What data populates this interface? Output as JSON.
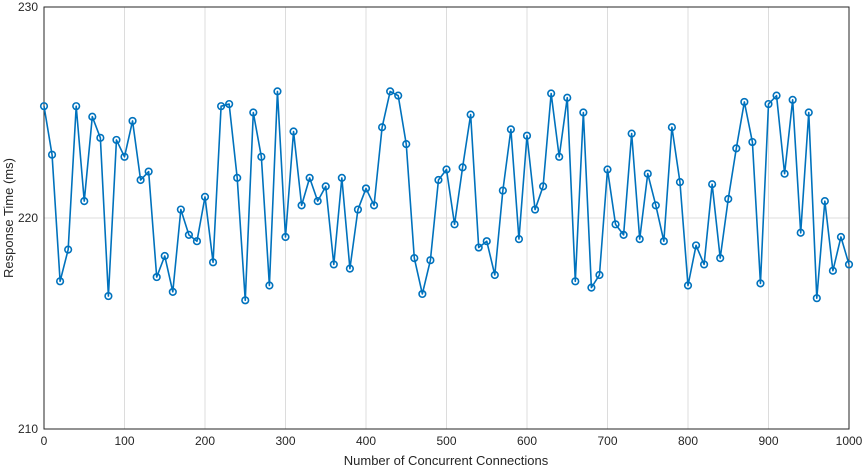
{
  "chart_data": {
    "type": "line",
    "xlabel": "Number of Concurrent Connections",
    "ylabel": "Response Time (ms)",
    "xlim": [
      0,
      1000
    ],
    "ylim": [
      210,
      230
    ],
    "xticks": [
      0,
      100,
      200,
      300,
      400,
      500,
      600,
      700,
      800,
      900,
      1000
    ],
    "yticks": [
      210,
      220,
      230
    ],
    "grid": true,
    "marker": "circle",
    "color": "#0072BD",
    "series": [
      {
        "x": [
          0,
          10,
          20,
          30,
          40,
          50,
          60,
          70,
          80,
          90,
          100,
          110,
          120,
          130,
          140,
          150,
          160,
          170,
          180,
          190,
          200,
          210,
          220,
          230,
          240,
          250,
          260,
          270,
          280,
          290,
          300,
          310,
          320,
          330,
          340,
          350,
          360,
          370,
          380,
          390,
          400,
          410,
          420,
          430,
          440,
          450,
          460,
          470,
          480,
          490,
          500,
          510,
          520,
          530,
          540,
          550,
          560,
          570,
          580,
          590,
          600,
          610,
          620,
          630,
          640,
          650,
          660,
          670,
          680,
          690,
          700,
          710,
          720,
          730,
          740,
          750,
          760,
          770,
          780,
          790,
          800,
          810,
          820,
          830,
          840,
          850,
          860,
          870,
          880,
          890,
          900,
          910,
          920,
          930,
          940,
          950,
          960,
          970,
          980,
          990,
          1000
        ],
        "values": [
          225.3,
          223.0,
          217.0,
          218.5,
          225.3,
          220.8,
          224.8,
          223.8,
          216.3,
          223.7,
          222.9,
          224.6,
          221.8,
          222.2,
          217.2,
          218.2,
          216.5,
          220.4,
          219.2,
          218.9,
          221.0,
          217.9,
          225.3,
          225.4,
          221.9,
          216.1,
          225.0,
          222.9,
          216.8,
          226.0,
          219.1,
          224.1,
          220.6,
          221.9,
          220.8,
          221.5,
          217.8,
          221.9,
          217.6,
          220.4,
          221.4,
          220.6,
          224.3,
          226.0,
          225.8,
          223.5,
          218.1,
          216.4,
          218.0,
          221.8,
          222.3,
          219.7,
          222.4,
          224.9,
          218.6,
          218.9,
          217.3,
          221.3,
          224.2,
          219.0,
          223.9,
          220.4,
          221.5,
          225.9,
          222.9,
          225.7,
          217.0,
          225.0,
          216.7,
          217.3,
          222.3,
          219.7,
          219.2,
          224.0,
          219.0,
          222.1,
          220.6,
          218.9,
          224.3,
          221.7,
          216.8,
          218.7,
          217.8,
          221.6,
          218.1,
          220.9,
          223.3,
          225.5,
          223.6,
          216.9,
          225.4,
          225.8,
          222.1,
          225.6,
          219.3,
          225.0,
          216.2,
          220.8,
          217.5,
          219.1,
          217.8
        ]
      }
    ]
  }
}
